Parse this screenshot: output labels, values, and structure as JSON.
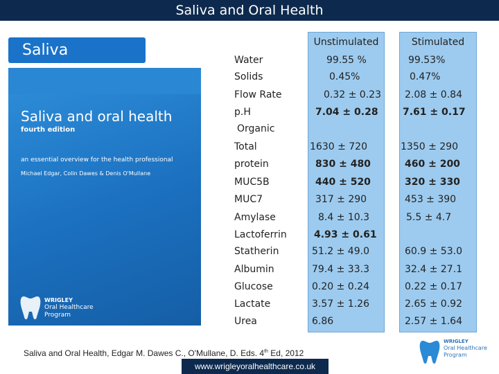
{
  "slide": {
    "title": "Saliva and Oral Health",
    "section_tag": "Saliva"
  },
  "book": {
    "title": "Saliva and oral health",
    "edition": "fourth edition",
    "subtitle": "an essential overview for the health professional",
    "authors": "Michael Edgar, Colin Dawes & Denis O'Mullane",
    "brand_line1": "WRIGLEY",
    "brand_line2": "Oral Healthcare",
    "brand_line3": "Program"
  },
  "table": {
    "headers": {
      "unstimulated": "Unstimulated",
      "stimulated": "Stimulated"
    },
    "group_label": "Organic",
    "rows": [
      {
        "label": "Water",
        "unstimulated": "99.55 %",
        "stimulated": "99.53%"
      },
      {
        "label": "Solids",
        "unstimulated": "0.45%",
        "stimulated": "0.47%"
      },
      {
        "label": "Flow Rate",
        "unstimulated": "0.32 ± 0.23",
        "stimulated": "2.08 ± 0.84"
      },
      {
        "label": "p.H",
        "unstimulated": "7.04 ± 0.28",
        "stimulated": "7.61 ± 0.17"
      },
      {
        "label": "Total",
        "unstimulated": "1630 ± 720",
        "stimulated": "1350 ± 290"
      },
      {
        "label": "protein",
        "unstimulated": "830 ± 480",
        "stimulated": "460 ± 200"
      },
      {
        "label": "MUC5B",
        "unstimulated": "440 ± 520",
        "stimulated": "320 ± 330"
      },
      {
        "label": "MUC7",
        "unstimulated": "317 ± 290",
        "stimulated": "453 ± 390"
      },
      {
        "label": "Amylase",
        "unstimulated": "8.4 ± 10.3",
        "stimulated": "5.5 ± 4.7"
      },
      {
        "label": "Lactoferrin",
        "unstimulated": "4.93 ± 0.61",
        "stimulated": ""
      },
      {
        "label": "Statherin",
        "unstimulated": "51.2 ± 49.0",
        "stimulated": "60.9 ± 53.0"
      },
      {
        "label": "Albumin",
        "unstimulated": "79.4 ± 33.3",
        "stimulated": "32.4 ± 27.1"
      },
      {
        "label": "Glucose",
        "unstimulated": "0.20 ± 0.24",
        "stimulated": "0.22 ± 0.17"
      },
      {
        "label": "Lactate",
        "unstimulated": "3.57 ± 1.26",
        "stimulated": "2.65 ± 0.92"
      },
      {
        "label": "Urea",
        "unstimulated": "6.86",
        "stimulated": "2.57 ± 1.64"
      }
    ]
  },
  "footer": {
    "citation_main": "Saliva and Oral Health, Edgar M. Dawes C., O'Mullane, D.  Eds. 4",
    "citation_sup": "th",
    "citation_end": " Ed, 2012",
    "url": "www.wrigleyoralhealthcare.co.uk",
    "brand_line1": "WRIGLEY",
    "brand_line2": "Oral Healthcare",
    "brand_line3": "Program"
  },
  "colors": {
    "header_bar": "#0d2a4e",
    "tag_blue": "#1a73c9",
    "column_fill": "#9dcbef"
  }
}
